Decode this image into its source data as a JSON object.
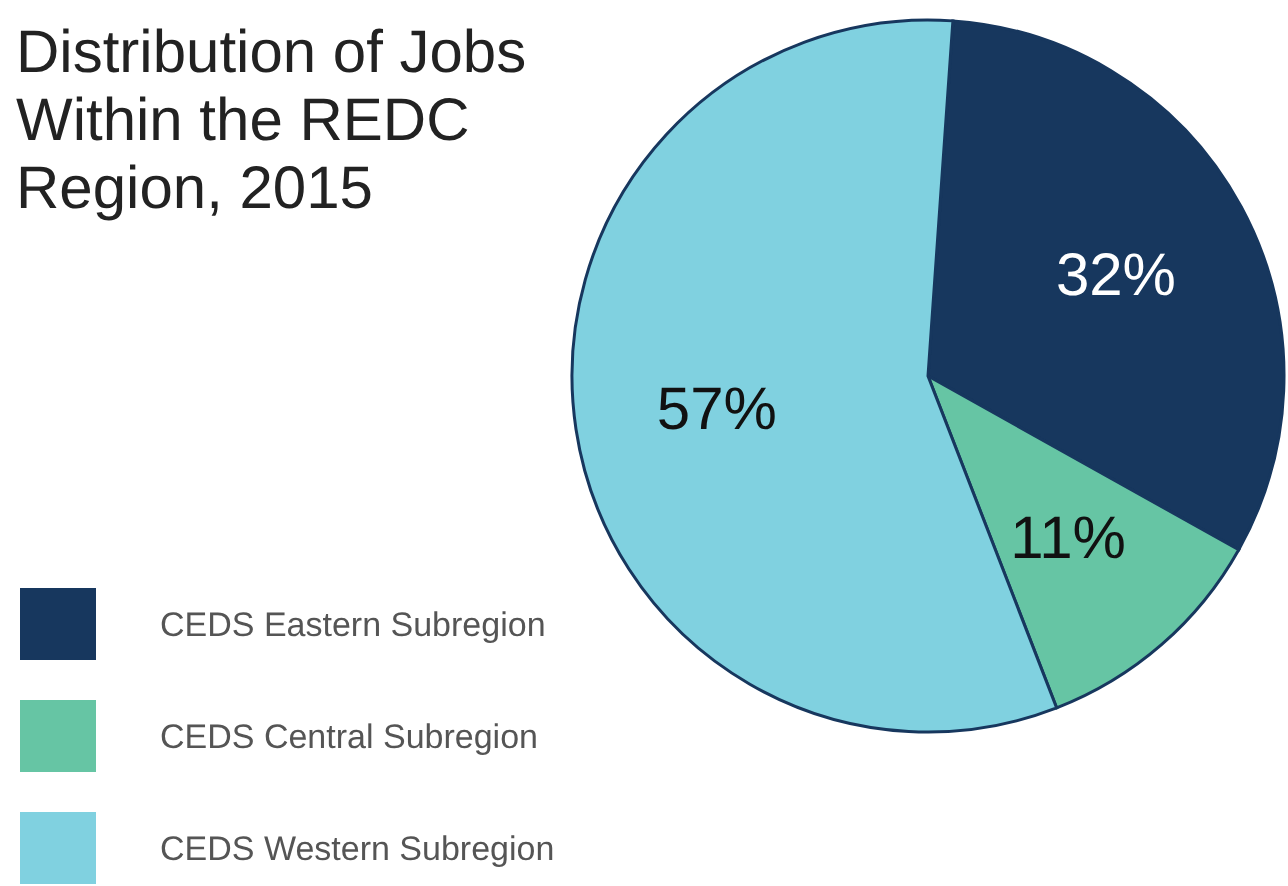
{
  "chart_data": {
    "type": "pie",
    "title": "Distribution of Jobs Within the REDC Region, 2015",
    "categories": [
      "CEDS Eastern Subregion",
      "CEDS Central Subregion",
      "CEDS Western Subregion"
    ],
    "values": [
      32,
      11,
      57
    ],
    "value_labels": [
      "32%",
      "11%",
      "57%"
    ],
    "colors": [
      "#17375e",
      "#66c5a4",
      "#80d1e0"
    ],
    "legend": "bottom left"
  }
}
